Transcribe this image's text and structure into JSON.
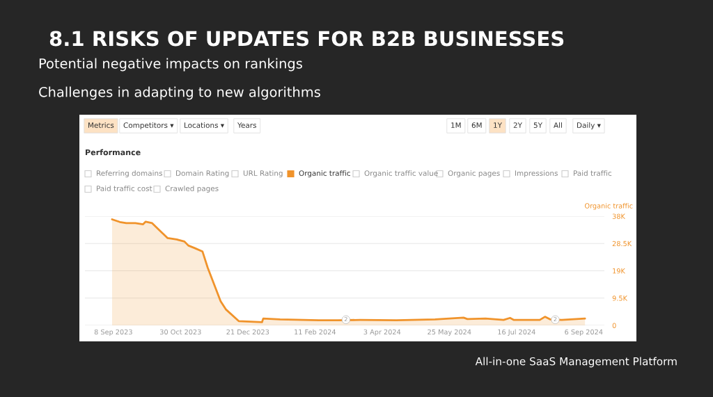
{
  "chart_data": {
    "type": "area",
    "title": "8.1 RISKS OF UPDATES FOR B2B BUSINESSES",
    "subtitle": "Potential negative impacts on rankings\nChallenges in adapting to new algorithms",
    "ylabel": "Organic traffic",
    "annotations": [
      "Metrics",
      "Competitors ▾",
      "Locations ▾",
      "Years",
      "1M",
      "6M",
      "1Y",
      "2Y",
      "5Y",
      "All",
      "Daily ▾",
      "Performance",
      "Referring domains",
      "Domain Rating",
      "URL Rating",
      "Organic traffic value",
      "Organic pages",
      "Impressions",
      "Paid traffic",
      "Paid traffic cost",
      "Crawled pages",
      "All-in-one SaaS Management Platform",
      {
        "text": "2",
        "x": "2024-03-06",
        "y": 0
      },
      {
        "text": "2",
        "x": "2024-08-15",
        "y": 0
      }
    ],
    "series": [
      {
        "name": "Organic traffic",
        "color": "#f0932b",
        "x": [
          "2023-09-07",
          "2023-09-13",
          "2023-09-18",
          "2023-09-25",
          "2023-10-01",
          "2023-10-03",
          "2023-10-08",
          "2023-10-13",
          "2023-10-20",
          "2023-10-27",
          "2023-11-02",
          "2023-11-05",
          "2023-11-10",
          "2023-11-16",
          "2023-11-20",
          "2023-11-30",
          "2023-12-04",
          "2023-12-14",
          "2024-01-01",
          "2024-01-02",
          "2024-01-15",
          "2024-02-14",
          "2024-02-29",
          "2024-03-17",
          "2024-04-14",
          "2024-05-14",
          "2024-06-05",
          "2024-06-08",
          "2024-06-22",
          "2024-07-06",
          "2024-07-11",
          "2024-07-14",
          "2024-08-03",
          "2024-08-07",
          "2024-08-11",
          "2024-08-20",
          "2024-09-07"
        ],
        "values": [
          36900,
          36000,
          35600,
          35600,
          35200,
          36100,
          35600,
          33400,
          30400,
          29900,
          29200,
          27800,
          26900,
          25700,
          20100,
          8400,
          5600,
          1500,
          1100,
          2400,
          2100,
          1800,
          1800,
          1900,
          1800,
          2100,
          2700,
          2200,
          2400,
          1900,
          2600,
          1900,
          1900,
          3000,
          2100,
          1900,
          2400
        ]
      }
    ],
    "xlim": [
      "2023-08-17",
      "2024-09-22"
    ],
    "xticks": [
      {
        "value": "2023-09-08",
        "label": "8 Sep 2023"
      },
      {
        "value": "2023-10-30",
        "label": "30 Oct 2023"
      },
      {
        "value": "2023-12-21",
        "label": "21 Dec 2023"
      },
      {
        "value": "2024-02-11",
        "label": "11 Feb 2024"
      },
      {
        "value": "2024-04-03",
        "label": "3 Apr 2024"
      },
      {
        "value": "2024-05-25",
        "label": "25 May 2024"
      },
      {
        "value": "2024-07-16",
        "label": "16 Jul 2024"
      },
      {
        "value": "2024-09-06",
        "label": "6 Sep 2024"
      }
    ],
    "ylim": [
      0,
      38000
    ],
    "yticks": [
      0,
      {
        "value": 9500,
        "label": "9.5K"
      },
      {
        "value": 19000,
        "label": "19K"
      },
      {
        "value": 28500,
        "label": "28.5K"
      },
      {
        "value": 38000,
        "label": "38K"
      }
    ],
    "grid": "y"
  }
}
